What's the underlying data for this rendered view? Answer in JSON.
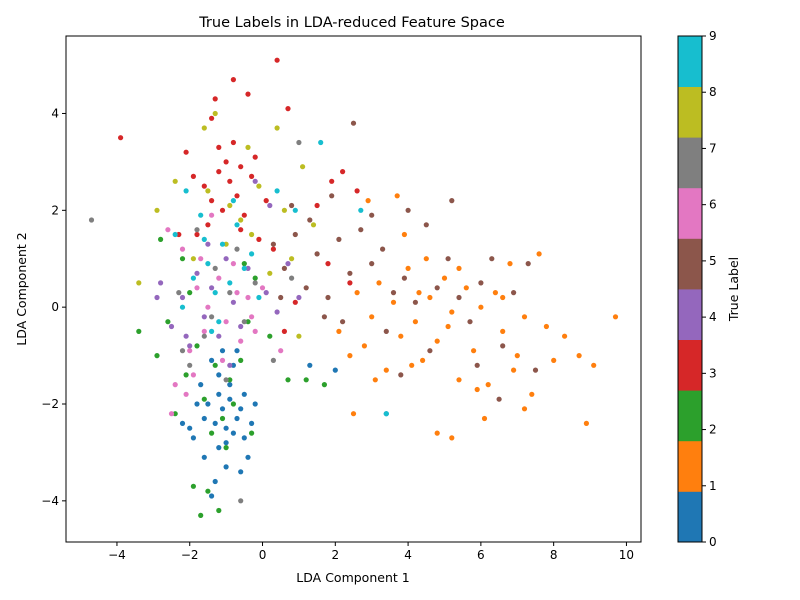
{
  "chart_data": {
    "type": "scatter",
    "title": "True Labels in LDA-reduced Feature Space",
    "xlabel": "LDA Component 1",
    "ylabel": "LDA Component 2",
    "xlim": [
      -5.4,
      10.4
    ],
    "ylim": [
      -4.85,
      5.6
    ],
    "xticks": [
      -4,
      -2,
      0,
      2,
      4,
      6,
      8,
      10
    ],
    "yticks": [
      -4,
      -2,
      0,
      2,
      4
    ],
    "grid": false,
    "colorbar": {
      "label": "True Label",
      "ticks": [
        0,
        1,
        2,
        3,
        4,
        5,
        6,
        7,
        8,
        9
      ],
      "colors": [
        "#1f77b4",
        "#ff7f0e",
        "#2ca02c",
        "#d62728",
        "#9467bd",
        "#8c564b",
        "#e377c2",
        "#7f7f7f",
        "#bcbd22",
        "#17becf"
      ]
    },
    "series": [
      {
        "label": 0,
        "points": [
          [
            -1.6,
            -3.1
          ],
          [
            -1.4,
            -3.9
          ],
          [
            -1.2,
            -2.9
          ],
          [
            -1.0,
            -3.3
          ],
          [
            -0.8,
            -2.6
          ],
          [
            -0.6,
            -3.4
          ],
          [
            -1.3,
            -2.4
          ],
          [
            -1.1,
            -2.1
          ],
          [
            -0.9,
            -1.9
          ],
          [
            -1.5,
            -2.0
          ],
          [
            -0.7,
            -2.3
          ],
          [
            -0.5,
            -1.8
          ],
          [
            -1.7,
            -1.6
          ],
          [
            -1.2,
            -1.4
          ],
          [
            -0.8,
            -1.2
          ],
          [
            -1.9,
            -2.7
          ],
          [
            -1.0,
            -2.8
          ],
          [
            -0.4,
            -3.1
          ],
          [
            -0.3,
            -2.4
          ],
          [
            -1.4,
            -1.1
          ],
          [
            -1.1,
            -0.9
          ],
          [
            -0.9,
            -1.6
          ],
          [
            -1.6,
            -2.3
          ],
          [
            -0.6,
            -2.1
          ],
          [
            -2.0,
            -2.5
          ],
          [
            -1.3,
            -3.6
          ],
          [
            -0.2,
            -2.0
          ],
          [
            -1.8,
            -2.0
          ],
          [
            -0.7,
            -0.9
          ],
          [
            -1.2,
            -1.8
          ],
          [
            -2.2,
            -2.4
          ],
          [
            -0.5,
            -2.7
          ],
          [
            1.3,
            -1.2
          ],
          [
            2.0,
            -1.3
          ],
          [
            3.4,
            -2.2
          ],
          [
            -1.0,
            -2.5
          ]
        ]
      },
      {
        "label": 1,
        "points": [
          [
            2.1,
            -0.5
          ],
          [
            2.4,
            -1.0
          ],
          [
            2.6,
            0.3
          ],
          [
            2.8,
            -0.8
          ],
          [
            3.0,
            -0.2
          ],
          [
            3.2,
            0.5
          ],
          [
            3.4,
            -1.3
          ],
          [
            3.6,
            0.1
          ],
          [
            3.8,
            -0.6
          ],
          [
            4.0,
            0.8
          ],
          [
            4.2,
            -0.3
          ],
          [
            4.4,
            -1.1
          ],
          [
            4.6,
            0.2
          ],
          [
            4.8,
            -0.7
          ],
          [
            5.0,
            0.6
          ],
          [
            5.2,
            -0.1
          ],
          [
            5.4,
            -1.5
          ],
          [
            5.6,
            0.4
          ],
          [
            5.8,
            -0.9
          ],
          [
            6.0,
            0.0
          ],
          [
            6.2,
            -1.6
          ],
          [
            6.4,
            0.3
          ],
          [
            6.6,
            -0.5
          ],
          [
            6.8,
            0.9
          ],
          [
            7.0,
            -1.0
          ],
          [
            7.2,
            -0.2
          ],
          [
            7.4,
            -1.8
          ],
          [
            7.6,
            1.1
          ],
          [
            7.8,
            -0.4
          ],
          [
            8.0,
            -1.1
          ],
          [
            8.3,
            -0.6
          ],
          [
            8.7,
            -1.0
          ],
          [
            8.9,
            -2.4
          ],
          [
            9.1,
            -1.2
          ],
          [
            9.7,
            -0.2
          ],
          [
            4.8,
            -2.6
          ],
          [
            5.2,
            -2.7
          ],
          [
            6.1,
            -2.3
          ],
          [
            7.2,
            -2.1
          ],
          [
            2.5,
            -2.2
          ],
          [
            3.9,
            1.5
          ],
          [
            4.5,
            1.0
          ],
          [
            5.4,
            0.8
          ],
          [
            6.6,
            0.2
          ],
          [
            3.1,
            -1.5
          ],
          [
            4.1,
            -1.2
          ],
          [
            5.9,
            -1.7
          ],
          [
            6.9,
            -1.3
          ],
          [
            3.7,
            2.3
          ],
          [
            4.3,
            0.3
          ],
          [
            5.1,
            -0.4
          ],
          [
            2.9,
            2.2
          ]
        ]
      },
      {
        "label": 2,
        "points": [
          [
            -1.7,
            -4.3
          ],
          [
            -1.2,
            -4.2
          ],
          [
            -1.5,
            -3.8
          ],
          [
            -1.9,
            -3.7
          ],
          [
            -1.4,
            -2.6
          ],
          [
            -1.1,
            -2.3
          ],
          [
            -0.8,
            -2.0
          ],
          [
            -1.6,
            -1.9
          ],
          [
            -0.9,
            -1.5
          ],
          [
            -2.1,
            -1.4
          ],
          [
            -2.9,
            -1.0
          ],
          [
            -2.6,
            -0.3
          ],
          [
            -3.4,
            -0.5
          ],
          [
            -2.8,
            1.4
          ],
          [
            -2.2,
            1.0
          ],
          [
            -0.5,
            0.9
          ],
          [
            0.7,
            -1.5
          ],
          [
            1.2,
            -1.5
          ],
          [
            1.7,
            -1.6
          ],
          [
            -0.3,
            -2.6
          ],
          [
            -1.0,
            -2.9
          ],
          [
            -2.4,
            -2.2
          ],
          [
            -1.8,
            -0.8
          ],
          [
            -0.6,
            -1.1
          ],
          [
            0.2,
            -0.6
          ],
          [
            -1.3,
            -1.2
          ],
          [
            -2.0,
            0.3
          ],
          [
            -0.4,
            -0.3
          ],
          [
            -0.2,
            0.6
          ]
        ]
      },
      {
        "label": 3,
        "points": [
          [
            -3.9,
            3.5
          ],
          [
            -2.1,
            3.2
          ],
          [
            -1.9,
            2.7
          ],
          [
            -1.6,
            2.5
          ],
          [
            -1.4,
            2.2
          ],
          [
            -1.2,
            3.3
          ],
          [
            -1.0,
            3.0
          ],
          [
            -0.8,
            4.7
          ],
          [
            -0.6,
            2.9
          ],
          [
            -1.3,
            4.3
          ],
          [
            -1.1,
            2.0
          ],
          [
            -0.9,
            2.6
          ],
          [
            -0.7,
            2.3
          ],
          [
            -0.5,
            1.9
          ],
          [
            -0.4,
            4.4
          ],
          [
            -0.3,
            2.7
          ],
          [
            -0.2,
            3.1
          ],
          [
            0.4,
            5.1
          ],
          [
            0.7,
            4.1
          ],
          [
            0.1,
            2.2
          ],
          [
            -1.5,
            1.7
          ],
          [
            -1.8,
            1.5
          ],
          [
            -0.1,
            1.4
          ],
          [
            0.3,
            1.2
          ],
          [
            1.5,
            2.1
          ],
          [
            1.9,
            2.6
          ],
          [
            2.2,
            2.8
          ],
          [
            2.6,
            2.4
          ],
          [
            1.8,
            0.9
          ],
          [
            2.4,
            0.5
          ],
          [
            -1.4,
            3.9
          ],
          [
            -1.2,
            2.8
          ],
          [
            -0.8,
            3.4
          ],
          [
            -0.6,
            1.6
          ],
          [
            0.6,
            -0.5
          ],
          [
            0.9,
            0.1
          ],
          [
            -2.3,
            1.5
          ]
        ]
      },
      {
        "label": 4,
        "points": [
          [
            -2.8,
            0.5
          ],
          [
            -2.5,
            -0.4
          ],
          [
            -2.2,
            0.2
          ],
          [
            -2.0,
            -0.8
          ],
          [
            -1.8,
            0.7
          ],
          [
            -1.6,
            -0.2
          ],
          [
            -1.4,
            0.4
          ],
          [
            -1.2,
            -0.6
          ],
          [
            -1.0,
            1.0
          ],
          [
            -0.8,
            0.1
          ],
          [
            -0.6,
            -0.4
          ],
          [
            -0.4,
            0.8
          ],
          [
            -0.2,
            2.6
          ],
          [
            0.1,
            0.3
          ],
          [
            0.4,
            -0.1
          ],
          [
            0.7,
            0.9
          ],
          [
            1.0,
            0.2
          ],
          [
            -1.5,
            1.3
          ],
          [
            -0.9,
            -1.2
          ],
          [
            -2.1,
            -0.6
          ],
          [
            0.2,
            2.1
          ],
          [
            -2.9,
            0.2
          ]
        ]
      },
      {
        "label": 5,
        "points": [
          [
            0.3,
            1.3
          ],
          [
            0.6,
            0.8
          ],
          [
            0.9,
            1.5
          ],
          [
            1.2,
            0.4
          ],
          [
            1.5,
            1.1
          ],
          [
            1.8,
            0.2
          ],
          [
            2.1,
            1.4
          ],
          [
            2.4,
            0.7
          ],
          [
            2.7,
            1.6
          ],
          [
            3.0,
            0.9
          ],
          [
            3.3,
            1.2
          ],
          [
            3.6,
            0.3
          ],
          [
            3.9,
            0.6
          ],
          [
            4.2,
            0.1
          ],
          [
            4.5,
            1.7
          ],
          [
            4.8,
            0.4
          ],
          [
            5.1,
            1.0
          ],
          [
            5.4,
            0.2
          ],
          [
            5.7,
            -0.3
          ],
          [
            6.0,
            0.5
          ],
          [
            6.3,
            1.0
          ],
          [
            6.6,
            -0.8
          ],
          [
            6.9,
            0.3
          ],
          [
            7.3,
            0.9
          ],
          [
            7.5,
            -1.3
          ],
          [
            5.2,
            2.2
          ],
          [
            4.0,
            2.0
          ],
          [
            3.0,
            1.9
          ],
          [
            2.5,
            3.8
          ],
          [
            1.9,
            2.3
          ],
          [
            1.3,
            1.8
          ],
          [
            0.8,
            2.1
          ],
          [
            2.2,
            -0.3
          ],
          [
            3.4,
            -0.5
          ],
          [
            4.6,
            -0.9
          ],
          [
            5.9,
            -1.2
          ],
          [
            6.5,
            -1.9
          ],
          [
            3.8,
            -1.4
          ],
          [
            1.7,
            -0.2
          ],
          [
            0.5,
            0.2
          ]
        ]
      },
      {
        "label": 6,
        "points": [
          [
            -2.6,
            1.6
          ],
          [
            -2.4,
            -1.6
          ],
          [
            -2.2,
            1.2
          ],
          [
            -2.0,
            -0.9
          ],
          [
            -1.8,
            0.4
          ],
          [
            -1.6,
            -0.5
          ],
          [
            -1.4,
            1.9
          ],
          [
            -1.2,
            0.6
          ],
          [
            -1.0,
            -0.3
          ],
          [
            -0.8,
            0.9
          ],
          [
            -0.6,
            -0.7
          ],
          [
            -0.4,
            0.2
          ],
          [
            -0.2,
            -0.5
          ],
          [
            0.0,
            0.4
          ],
          [
            0.5,
            -0.9
          ],
          [
            -1.9,
            -1.4
          ],
          [
            -2.1,
            -1.8
          ],
          [
            -1.1,
            -1.1
          ],
          [
            -0.7,
            0.3
          ],
          [
            -1.5,
            0.0
          ],
          [
            -0.3,
            -0.2
          ],
          [
            -1.7,
            1.0
          ],
          [
            -2.5,
            -2.2
          ]
        ]
      },
      {
        "label": 7,
        "points": [
          [
            -4.7,
            1.8
          ],
          [
            -2.3,
            0.3
          ],
          [
            -2.0,
            -1.2
          ],
          [
            -1.8,
            1.6
          ],
          [
            -1.6,
            -0.6
          ],
          [
            -1.3,
            0.8
          ],
          [
            -1.0,
            -1.5
          ],
          [
            -0.7,
            1.2
          ],
          [
            -0.5,
            -0.3
          ],
          [
            -0.2,
            0.5
          ],
          [
            0.3,
            -1.1
          ],
          [
            0.8,
            0.6
          ],
          [
            1.0,
            3.4
          ],
          [
            -0.6,
            -4.0
          ],
          [
            -1.4,
            -0.2
          ],
          [
            -0.9,
            0.3
          ],
          [
            -2.2,
            -0.9
          ]
        ]
      },
      {
        "label": 8,
        "points": [
          [
            -3.4,
            0.5
          ],
          [
            -2.9,
            2.0
          ],
          [
            -2.4,
            2.6
          ],
          [
            -1.6,
            3.7
          ],
          [
            -1.3,
            4.0
          ],
          [
            -0.9,
            2.1
          ],
          [
            -0.6,
            1.8
          ],
          [
            -0.4,
            3.3
          ],
          [
            -0.1,
            2.5
          ],
          [
            0.4,
            3.7
          ],
          [
            0.6,
            2.0
          ],
          [
            0.8,
            1.0
          ],
          [
            1.1,
            2.9
          ],
          [
            1.4,
            1.7
          ],
          [
            -1.0,
            1.3
          ],
          [
            -0.3,
            1.5
          ],
          [
            -1.9,
            1.0
          ],
          [
            0.2,
            0.7
          ],
          [
            1.0,
            -0.6
          ],
          [
            -1.5,
            2.4
          ]
        ]
      },
      {
        "label": 9,
        "points": [
          [
            -2.4,
            1.5
          ],
          [
            -2.1,
            2.4
          ],
          [
            -1.9,
            0.6
          ],
          [
            -1.7,
            1.9
          ],
          [
            -1.5,
            0.9
          ],
          [
            -1.3,
            0.3
          ],
          [
            -1.1,
            1.3
          ],
          [
            -0.9,
            0.5
          ],
          [
            -0.7,
            1.7
          ],
          [
            -0.5,
            0.8
          ],
          [
            -0.3,
            1.1
          ],
          [
            -0.1,
            0.2
          ],
          [
            0.4,
            2.4
          ],
          [
            1.6,
            3.4
          ],
          [
            2.7,
            2.0
          ],
          [
            3.4,
            -2.2
          ],
          [
            0.9,
            2.0
          ],
          [
            -1.6,
            1.4
          ],
          [
            -1.2,
            -0.3
          ],
          [
            -2.2,
            0.0
          ],
          [
            -0.8,
            2.2
          ],
          [
            -1.4,
            -0.5
          ]
        ]
      }
    ]
  }
}
